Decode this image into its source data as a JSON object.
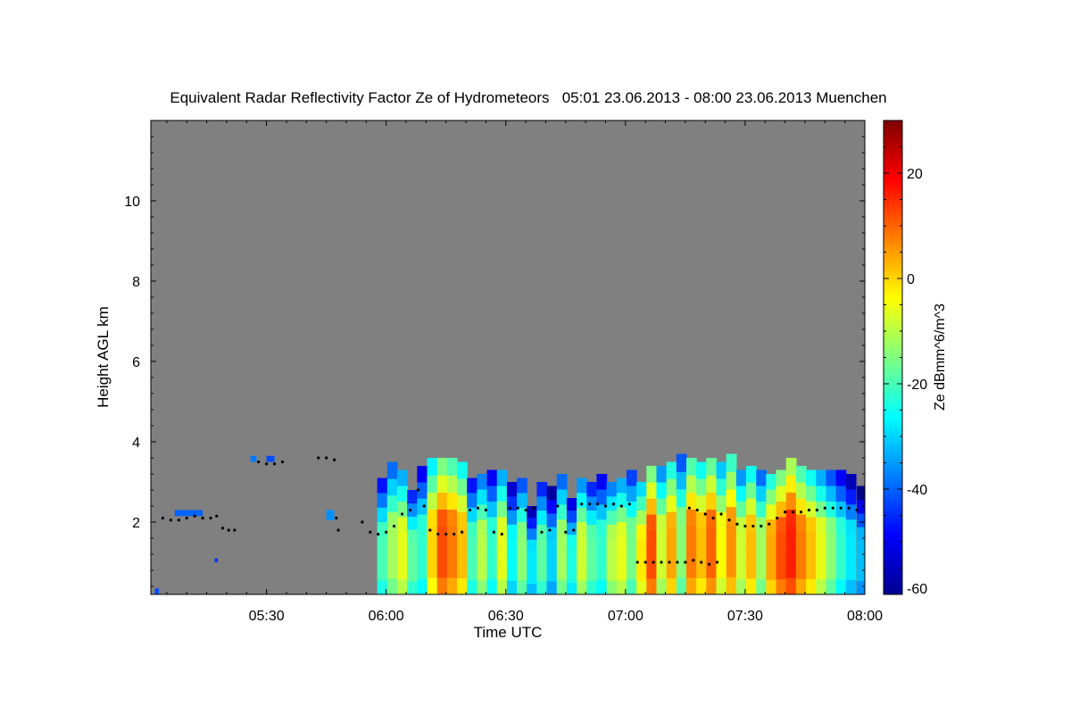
{
  "chart_data": {
    "type": "heatmap",
    "title": "Equivalent Radar Reflectivity Factor Ze of Hydrometeors   05:01 23.06.2013 - 08:00 23.06.2013 Muenchen",
    "xlabel": "Time UTC",
    "ylabel": "Height AGL km",
    "xlim_minutes_utc": [
      301,
      480
    ],
    "ylim_km": [
      0.2,
      12.0
    ],
    "x_ticks": [
      {
        "minutes": 330,
        "label": "05:30"
      },
      {
        "minutes": 360,
        "label": "06:00"
      },
      {
        "minutes": 390,
        "label": "06:30"
      },
      {
        "minutes": 420,
        "label": "07:00"
      },
      {
        "minutes": 450,
        "label": "07:30"
      },
      {
        "minutes": 480,
        "label": "08:00"
      }
    ],
    "y_ticks": [
      {
        "km": 2,
        "label": "2"
      },
      {
        "km": 4,
        "label": "4"
      },
      {
        "km": 6,
        "label": "6"
      },
      {
        "km": 8,
        "label": "8"
      },
      {
        "km": 10,
        "label": "10"
      }
    ],
    "colorbar": {
      "label": "Ze dBmm^6/m^3",
      "range": [
        -60,
        30
      ],
      "colormap": "jet",
      "ticks": [
        {
          "value": 20,
          "label": "20"
        },
        {
          "value": 0,
          "label": "0"
        },
        {
          "value": -20,
          "label": "-20"
        },
        {
          "value": -40,
          "label": "-40"
        },
        {
          "value": -60,
          "label": "-60"
        }
      ]
    },
    "colors": {
      "background_no_data": "#808080",
      "cloud_base_marker": "#000000"
    },
    "echo_columns": [
      {
        "t": 359.0,
        "w": 2.5,
        "top": 3.1,
        "ze": -20
      },
      {
        "t": 361.5,
        "w": 2.5,
        "top": 3.5,
        "ze": -12
      },
      {
        "t": 364.0,
        "w": 2.5,
        "top": 3.3,
        "ze": -6
      },
      {
        "t": 366.5,
        "w": 2.5,
        "top": 2.8,
        "ze": -18
      },
      {
        "t": 369.0,
        "w": 2.5,
        "top": 3.4,
        "ze": -22
      },
      {
        "t": 371.5,
        "w": 2.5,
        "top": 3.6,
        "ze": 0
      },
      {
        "t": 374.0,
        "w": 2.5,
        "top": 3.6,
        "ze": 12
      },
      {
        "t": 376.5,
        "w": 2.5,
        "top": 3.6,
        "ze": 8
      },
      {
        "t": 379.0,
        "w": 2.5,
        "top": 3.5,
        "ze": 2
      },
      {
        "t": 381.5,
        "w": 2.5,
        "top": 3.1,
        "ze": -20
      },
      {
        "t": 384.0,
        "w": 2.5,
        "top": 3.2,
        "ze": -10
      },
      {
        "t": 386.5,
        "w": 2.5,
        "top": 3.3,
        "ze": -22
      },
      {
        "t": 389.0,
        "w": 2.5,
        "top": 3.3,
        "ze": -6
      },
      {
        "t": 391.5,
        "w": 2.5,
        "top": 3.0,
        "ze": -26
      },
      {
        "t": 394.0,
        "w": 2.5,
        "top": 3.1,
        "ze": -14
      },
      {
        "t": 396.5,
        "w": 2.5,
        "top": 2.4,
        "ze": -28
      },
      {
        "t": 399.0,
        "w": 2.5,
        "top": 3.0,
        "ze": -18
      },
      {
        "t": 401.5,
        "w": 2.5,
        "top": 2.9,
        "ze": -30
      },
      {
        "t": 404.0,
        "w": 2.5,
        "top": 3.2,
        "ze": -12
      },
      {
        "t": 406.5,
        "w": 2.5,
        "top": 2.6,
        "ze": -24
      },
      {
        "t": 409.0,
        "w": 2.5,
        "top": 3.1,
        "ze": -8
      },
      {
        "t": 411.5,
        "w": 2.5,
        "top": 3.0,
        "ze": -18
      },
      {
        "t": 414.0,
        "w": 2.5,
        "top": 3.2,
        "ze": -22
      },
      {
        "t": 416.5,
        "w": 2.5,
        "top": 3.0,
        "ze": -10
      },
      {
        "t": 419.0,
        "w": 2.5,
        "top": 3.1,
        "ze": -6
      },
      {
        "t": 421.5,
        "w": 2.5,
        "top": 3.3,
        "ze": -16
      },
      {
        "t": 424.0,
        "w": 2.5,
        "top": 3.0,
        "ze": -2
      },
      {
        "t": 426.5,
        "w": 2.5,
        "top": 3.4,
        "ze": 12
      },
      {
        "t": 429.0,
        "w": 2.5,
        "top": 3.4,
        "ze": -8
      },
      {
        "t": 431.5,
        "w": 2.5,
        "top": 3.5,
        "ze": 4
      },
      {
        "t": 434.0,
        "w": 2.5,
        "top": 3.7,
        "ze": -14
      },
      {
        "t": 436.5,
        "w": 2.5,
        "top": 3.6,
        "ze": 8
      },
      {
        "t": 439.0,
        "w": 2.5,
        "top": 3.5,
        "ze": 2
      },
      {
        "t": 441.5,
        "w": 2.5,
        "top": 3.6,
        "ze": 10
      },
      {
        "t": 444.0,
        "w": 2.5,
        "top": 3.5,
        "ze": -4
      },
      {
        "t": 446.5,
        "w": 2.5,
        "top": 3.7,
        "ze": 6
      },
      {
        "t": 449.0,
        "w": 2.5,
        "top": 3.3,
        "ze": -8
      },
      {
        "t": 451.5,
        "w": 2.5,
        "top": 3.4,
        "ze": 2
      },
      {
        "t": 454.0,
        "w": 2.5,
        "top": 3.3,
        "ze": -12
      },
      {
        "t": 456.5,
        "w": 2.5,
        "top": 3.2,
        "ze": 4
      },
      {
        "t": 459.0,
        "w": 2.5,
        "top": 3.3,
        "ze": 12
      },
      {
        "t": 461.5,
        "w": 2.5,
        "top": 3.6,
        "ze": 16
      },
      {
        "t": 464.0,
        "w": 2.5,
        "top": 3.4,
        "ze": 8
      },
      {
        "t": 466.5,
        "w": 2.5,
        "top": 3.3,
        "ze": 2
      },
      {
        "t": 469.0,
        "w": 2.5,
        "top": 3.3,
        "ze": -6
      },
      {
        "t": 471.5,
        "w": 2.5,
        "top": 3.3,
        "ze": -14
      },
      {
        "t": 474.0,
        "w": 2.5,
        "top": 3.3,
        "ze": -22
      },
      {
        "t": 476.5,
        "w": 2.5,
        "top": 3.2,
        "ze": -28
      },
      {
        "t": 479.0,
        "w": 2.0,
        "top": 2.9,
        "ze": -32
      }
    ],
    "isolated_echoes": [
      {
        "t0": 307.0,
        "t1": 314.0,
        "h0": 2.15,
        "h1": 2.3,
        "ze": -40
      },
      {
        "t0": 326.0,
        "t1": 327.5,
        "h0": 3.5,
        "h1": 3.65,
        "ze": -38
      },
      {
        "t0": 330.0,
        "t1": 332.0,
        "h0": 3.5,
        "h1": 3.65,
        "ze": -42
      },
      {
        "t0": 345.0,
        "t1": 347.0,
        "h0": 2.05,
        "h1": 2.3,
        "ze": -36
      },
      {
        "t0": 302.0,
        "t1": 303.0,
        "h0": 0.2,
        "h1": 0.35,
        "ze": -42
      },
      {
        "t0": 317.0,
        "t1": 317.8,
        "h0": 1.0,
        "h1": 1.1,
        "ze": -44
      }
    ],
    "cloud_base_detections": [
      {
        "t": 304.0,
        "h": 2.1
      },
      {
        "t": 306.0,
        "h": 2.05
      },
      {
        "t": 308.0,
        "h": 2.05
      },
      {
        "t": 310.0,
        "h": 2.1
      },
      {
        "t": 312.0,
        "h": 2.15
      },
      {
        "t": 314.0,
        "h": 2.1
      },
      {
        "t": 316.0,
        "h": 2.1
      },
      {
        "t": 317.5,
        "h": 2.15
      },
      {
        "t": 319.0,
        "h": 1.85
      },
      {
        "t": 320.5,
        "h": 1.8
      },
      {
        "t": 322.0,
        "h": 1.8
      },
      {
        "t": 328.0,
        "h": 3.5
      },
      {
        "t": 330.0,
        "h": 3.45
      },
      {
        "t": 332.0,
        "h": 3.45
      },
      {
        "t": 334.0,
        "h": 3.5
      },
      {
        "t": 343.0,
        "h": 3.6
      },
      {
        "t": 345.0,
        "h": 3.6
      },
      {
        "t": 347.0,
        "h": 3.55
      },
      {
        "t": 347.5,
        "h": 2.1
      },
      {
        "t": 348.0,
        "h": 1.8
      },
      {
        "t": 354.0,
        "h": 2.0
      },
      {
        "t": 356.0,
        "h": 1.75
      },
      {
        "t": 358.0,
        "h": 1.7
      },
      {
        "t": 360.0,
        "h": 1.75
      },
      {
        "t": 362.0,
        "h": 1.9
      },
      {
        "t": 364.0,
        "h": 2.2
      },
      {
        "t": 366.0,
        "h": 2.3
      },
      {
        "t": 368.0,
        "h": 2.8
      },
      {
        "t": 369.5,
        "h": 2.4
      },
      {
        "t": 371.0,
        "h": 1.8
      },
      {
        "t": 373.0,
        "h": 1.7
      },
      {
        "t": 375.0,
        "h": 1.7
      },
      {
        "t": 377.0,
        "h": 1.7
      },
      {
        "t": 379.0,
        "h": 1.75
      },
      {
        "t": 381.0,
        "h": 2.3
      },
      {
        "t": 383.0,
        "h": 2.35
      },
      {
        "t": 385.0,
        "h": 2.3
      },
      {
        "t": 387.0,
        "h": 1.75
      },
      {
        "t": 389.0,
        "h": 1.7
      },
      {
        "t": 391.0,
        "h": 2.35
      },
      {
        "t": 393.0,
        "h": 2.35
      },
      {
        "t": 395.0,
        "h": 2.3
      },
      {
        "t": 397.0,
        "h": 2.35
      },
      {
        "t": 399.0,
        "h": 1.75
      },
      {
        "t": 401.0,
        "h": 1.8
      },
      {
        "t": 403.0,
        "h": 2.4
      },
      {
        "t": 405.0,
        "h": 1.75
      },
      {
        "t": 407.0,
        "h": 1.8
      },
      {
        "t": 409.0,
        "h": 2.45
      },
      {
        "t": 411.0,
        "h": 2.45
      },
      {
        "t": 413.0,
        "h": 2.45
      },
      {
        "t": 415.0,
        "h": 2.4
      },
      {
        "t": 417.0,
        "h": 2.45
      },
      {
        "t": 419.0,
        "h": 2.4
      },
      {
        "t": 421.0,
        "h": 2.45
      },
      {
        "t": 423.0,
        "h": 1.0
      },
      {
        "t": 425.0,
        "h": 1.0
      },
      {
        "t": 427.0,
        "h": 1.0
      },
      {
        "t": 429.0,
        "h": 1.0
      },
      {
        "t": 431.0,
        "h": 1.0
      },
      {
        "t": 433.0,
        "h": 1.0
      },
      {
        "t": 435.0,
        "h": 1.0
      },
      {
        "t": 437.0,
        "h": 1.05
      },
      {
        "t": 439.0,
        "h": 1.0
      },
      {
        "t": 441.0,
        "h": 0.95
      },
      {
        "t": 443.0,
        "h": 1.0
      },
      {
        "t": 436.0,
        "h": 2.35
      },
      {
        "t": 438.0,
        "h": 2.3
      },
      {
        "t": 440.0,
        "h": 2.2
      },
      {
        "t": 442.0,
        "h": 2.1
      },
      {
        "t": 444.0,
        "h": 2.2
      },
      {
        "t": 446.0,
        "h": 2.05
      },
      {
        "t": 448.0,
        "h": 1.95
      },
      {
        "t": 450.0,
        "h": 1.9
      },
      {
        "t": 452.0,
        "h": 1.9
      },
      {
        "t": 454.0,
        "h": 1.9
      },
      {
        "t": 456.0,
        "h": 1.95
      },
      {
        "t": 458.0,
        "h": 2.1
      },
      {
        "t": 460.0,
        "h": 2.25
      },
      {
        "t": 462.0,
        "h": 2.25
      },
      {
        "t": 464.0,
        "h": 2.25
      },
      {
        "t": 466.0,
        "h": 2.3
      },
      {
        "t": 468.0,
        "h": 2.3
      },
      {
        "t": 470.0,
        "h": 2.35
      },
      {
        "t": 472.0,
        "h": 2.35
      },
      {
        "t": 474.0,
        "h": 2.35
      },
      {
        "t": 476.0,
        "h": 2.35
      },
      {
        "t": 478.0,
        "h": 2.3
      }
    ]
  }
}
